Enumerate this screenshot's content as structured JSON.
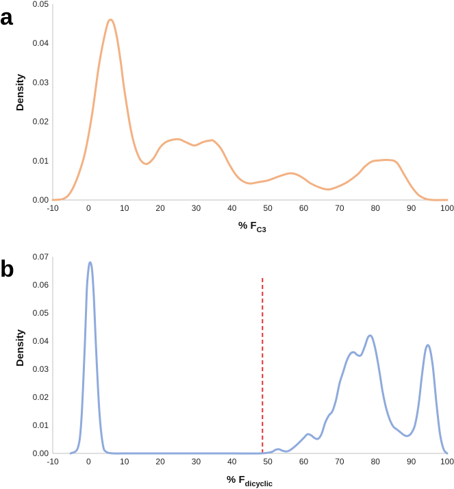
{
  "chart_data": [
    {
      "type": "line",
      "panel_label": "a",
      "xlabel_main": "% F",
      "xlabel_sub": "C3",
      "ylabel": "Density",
      "xlim": [
        -10,
        100
      ],
      "ylim": [
        0,
        0.05
      ],
      "xticks": [
        -10,
        0,
        10,
        20,
        30,
        40,
        50,
        60,
        70,
        80,
        90,
        100
      ],
      "yticks": [
        0.0,
        0.01,
        0.02,
        0.03,
        0.04,
        0.05
      ],
      "ytick_labels": [
        "0.00",
        "0.01",
        "0.02",
        "0.03",
        "0.04",
        "0.05"
      ],
      "grid": false,
      "series": [
        {
          "color": "#F2B183",
          "x": [
            -10,
            -7,
            -5,
            -3,
            -1,
            1,
            3,
            5,
            6,
            7,
            8,
            9,
            10,
            12,
            14,
            16,
            18,
            20,
            22,
            25,
            27,
            29,
            30,
            32,
            34,
            35,
            37,
            39,
            41,
            43,
            45,
            47,
            50,
            53,
            56,
            58,
            60,
            62,
            65,
            67,
            69,
            72,
            75,
            77,
            79,
            81,
            84,
            86,
            88,
            90,
            92,
            94,
            96,
            100
          ],
          "y": [
            0.0,
            0.0003,
            0.002,
            0.006,
            0.012,
            0.022,
            0.035,
            0.044,
            0.046,
            0.045,
            0.041,
            0.035,
            0.028,
            0.017,
            0.011,
            0.0092,
            0.0105,
            0.0135,
            0.015,
            0.0155,
            0.0148,
            0.014,
            0.014,
            0.0148,
            0.0152,
            0.015,
            0.013,
            0.0095,
            0.0065,
            0.0048,
            0.0042,
            0.0045,
            0.005,
            0.006,
            0.0068,
            0.0065,
            0.0055,
            0.0042,
            0.003,
            0.0027,
            0.0032,
            0.0045,
            0.0065,
            0.0085,
            0.0098,
            0.0101,
            0.0102,
            0.0095,
            0.0065,
            0.0035,
            0.0013,
            0.0003,
            0.0,
            0.0
          ]
        }
      ]
    },
    {
      "type": "line",
      "panel_label": "b",
      "xlabel_main": "% F",
      "xlabel_sub": "dicyclic",
      "ylabel": "Density",
      "xlim": [
        -10,
        100
      ],
      "ylim": [
        0,
        0.07
      ],
      "xticks": [
        -10,
        0,
        10,
        20,
        30,
        40,
        50,
        60,
        70,
        80,
        90,
        100
      ],
      "yticks": [
        0.0,
        0.01,
        0.02,
        0.03,
        0.04,
        0.05,
        0.06,
        0.07
      ],
      "ytick_labels": [
        "0.00",
        "0.01",
        "0.02",
        "0.03",
        "0.04",
        "0.05",
        "0.06",
        "0.07"
      ],
      "grid": false,
      "threshold_x": 48.5,
      "threshold_color": "#E03030",
      "series": [
        {
          "color": "#8FAADC",
          "x": [
            -5,
            -3,
            -2,
            -1,
            -0.5,
            0,
            0.5,
            1,
            1.5,
            2,
            3,
            4,
            5,
            7,
            10,
            20,
            30,
            40,
            48,
            51,
            52,
            53,
            54,
            55,
            56,
            58,
            60,
            61,
            62,
            63,
            64,
            65,
            66,
            67,
            68,
            69,
            70,
            71,
            72,
            73,
            74,
            75,
            76,
            77,
            78,
            79,
            80,
            81,
            82,
            83,
            84,
            85,
            86,
            87,
            88,
            89,
            90,
            91,
            92,
            93,
            94,
            95,
            96,
            97,
            98,
            99,
            100
          ],
          "y": [
            0.0,
            0.002,
            0.012,
            0.04,
            0.058,
            0.066,
            0.068,
            0.065,
            0.055,
            0.04,
            0.015,
            0.003,
            0.0005,
            0.0,
            0.0,
            0.0,
            0.0,
            0.0,
            0.0,
            0.0005,
            0.0012,
            0.0015,
            0.001,
            0.0007,
            0.001,
            0.003,
            0.0055,
            0.0068,
            0.0065,
            0.0055,
            0.0052,
            0.007,
            0.011,
            0.0135,
            0.015,
            0.019,
            0.025,
            0.029,
            0.033,
            0.0355,
            0.036,
            0.035,
            0.035,
            0.038,
            0.0415,
            0.0415,
            0.037,
            0.03,
            0.022,
            0.016,
            0.012,
            0.0095,
            0.0085,
            0.0075,
            0.0065,
            0.0062,
            0.0072,
            0.01,
            0.017,
            0.028,
            0.037,
            0.038,
            0.031,
            0.018,
            0.007,
            0.0015,
            0.0
          ]
        }
      ]
    }
  ]
}
